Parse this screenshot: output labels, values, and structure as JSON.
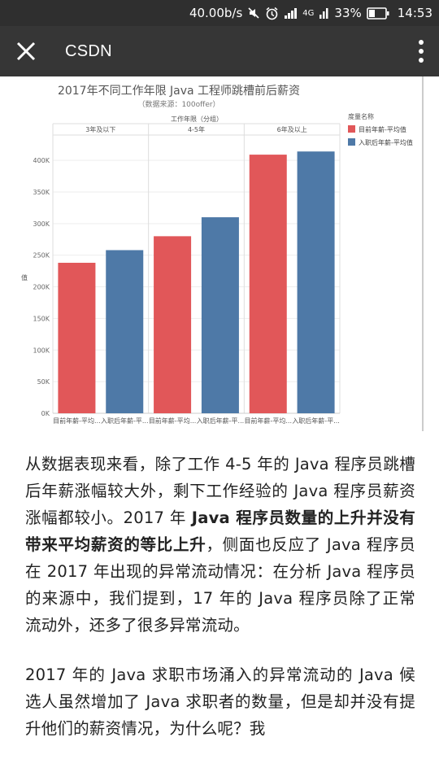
{
  "status_bar": {
    "speed": "40.00b/s",
    "network": "4G",
    "battery": "33%",
    "time": "14:53"
  },
  "app_bar": {
    "title": "CSDN",
    "close_icon": "close-icon",
    "more_icon": "more-vertical-icon"
  },
  "chart_data": {
    "type": "bar",
    "title": "2017年不同工作年限 Java 工程师跳槽前后薪资",
    "subtitle": "（数据来源：100offer）",
    "group_axis_label": "工作年限（分组）",
    "ylabel": "值",
    "groups": [
      "3年及以下",
      "4-5年",
      "6年及以上"
    ],
    "series": [
      {
        "name": "目前年薪-平均值",
        "color": "#e15759",
        "values": [
          238000,
          280000,
          409000
        ]
      },
      {
        "name": "入职后年薪-平均值",
        "color": "#4e79a7",
        "values": [
          258000,
          310000,
          414000
        ]
      }
    ],
    "x_tick_labels": [
      "目前年薪-平均...",
      "入职后年薪-平..."
    ],
    "y_ticks": [
      "0K",
      "50K",
      "100K",
      "150K",
      "200K",
      "250K",
      "300K",
      "350K",
      "400K"
    ],
    "ylim": [
      0,
      440000
    ],
    "legend": {
      "title": "度量名称",
      "placement": "top-right"
    },
    "grid": true
  },
  "article": {
    "p1_part1": "从数据表现来看，除了工作 4-5 年的 Java 程序员跳槽后年薪涨幅较大外，剩下工作经验的 Java 程序员薪资涨幅都较小。2017 年 ",
    "p1_bold": "Java 程序员数量的上升并没有带来平均薪资的等比上升",
    "p1_part2": "，侧面也反应了 Java 程序员在 2017 年出现的异常流动情况：在分析 Java 程序员的来源中，我们提到，17 年的 Java 程序员除了正常流动外，还多了很多异常流动。",
    "p2": "2017 年的 Java 求职市场涌入的异常流动的 Java 候选人虽然增加了 Java 求职者的数量，但是却并没有提升他们的薪资情况，为什么呢？我"
  }
}
